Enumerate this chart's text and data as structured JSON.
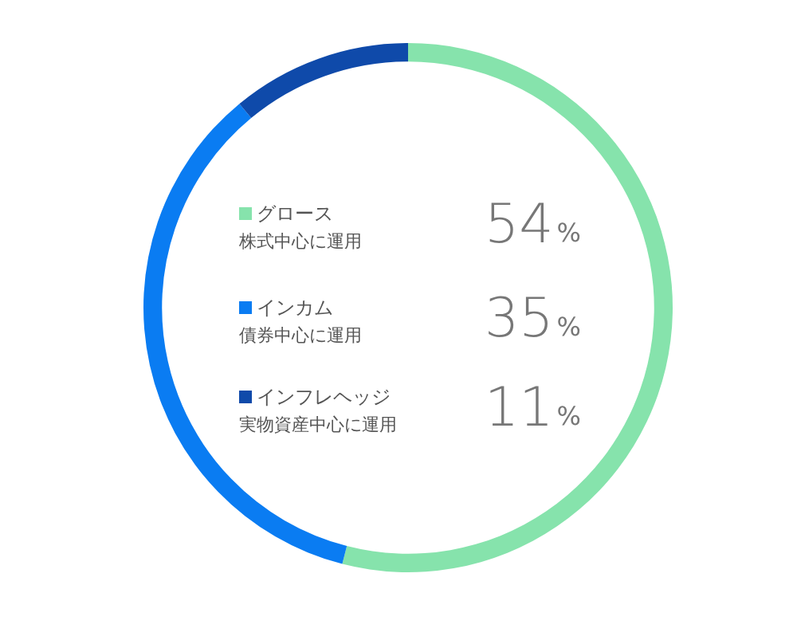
{
  "chart_data": {
    "type": "donut",
    "categories": [
      "グロース",
      "インカム",
      "インフレヘッジ"
    ],
    "values": [
      54,
      35,
      11
    ],
    "colors": [
      "#86e3ac",
      "#0a7cf2",
      "#0f4aaa"
    ],
    "legend": "center",
    "value_labels": [
      "54%",
      "35%",
      "11%"
    ],
    "annotations": [
      "株式中心に運用",
      "債券中心に運用",
      "実物資産中心に運用"
    ]
  }
}
